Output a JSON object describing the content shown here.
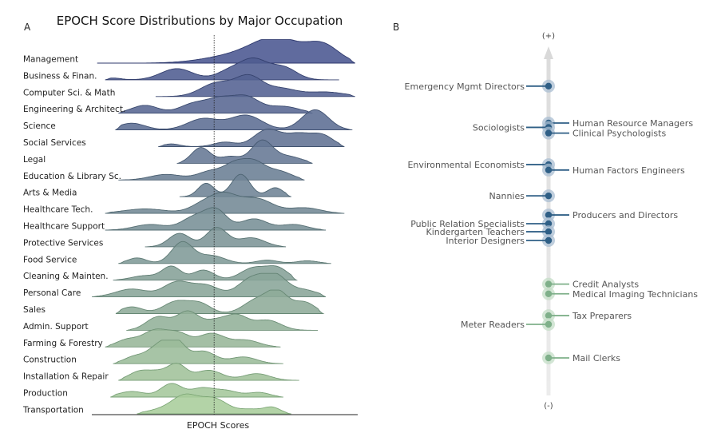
{
  "panel_a": {
    "letter": "A",
    "title": "EPOCH Score Distributions by Major Occupation",
    "xlabel": "EPOCH Scores"
  },
  "panel_b": {
    "letter": "B",
    "top_label": "(+)",
    "bottom_label": "(-)"
  },
  "chart_data": [
    {
      "type": "area",
      "subtype": "ridgeline",
      "title": "EPOCH Score Distributions by Major Occupation",
      "xlabel": "EPOCH Scores",
      "reference_line": "dotted vertical line at overall median",
      "categories": [
        "Management",
        "Business & Finan.",
        "Computer Sci. & Math",
        "Engineering & Architect.",
        "Science",
        "Social Services",
        "Legal",
        "Education & Library Sc.",
        "Arts & Media",
        "Healthcare Tech.",
        "Healthcare Support",
        "Protective Services",
        "Food Service",
        "Cleaning &  Mainten.",
        "Personal Care",
        "Sales",
        "Admin. Support",
        "Farming & Forestry",
        "Construction",
        "Installation & Repair",
        "Production",
        "Transportation"
      ],
      "x_range": [
        0,
        1
      ],
      "median": 0.46,
      "series": [
        {
          "range": [
            0.02,
            0.99
          ],
          "peaks": [
            [
              0.55,
              0.35,
              0.12
            ],
            [
              0.7,
              1.0,
              0.09
            ],
            [
              0.87,
              0.75,
              0.06
            ]
          ]
        },
        {
          "range": [
            0.05,
            0.93
          ],
          "peaks": [
            [
              0.08,
              0.08,
              0.03
            ],
            [
              0.32,
              0.5,
              0.06
            ],
            [
              0.52,
              0.4,
              0.05
            ],
            [
              0.61,
              0.85,
              0.05
            ],
            [
              0.72,
              0.55,
              0.05
            ]
          ]
        },
        {
          "range": [
            0.24,
            0.99
          ],
          "peaks": [
            [
              0.47,
              0.6,
              0.06
            ],
            [
              0.59,
              0.85,
              0.05
            ],
            [
              0.71,
              0.35,
              0.06
            ],
            [
              0.88,
              0.2,
              0.07
            ]
          ]
        },
        {
          "range": [
            0.1,
            0.83
          ],
          "peaks": [
            [
              0.2,
              0.35,
              0.05
            ],
            [
              0.38,
              0.4,
              0.05
            ],
            [
              0.48,
              0.6,
              0.05
            ],
            [
              0.58,
              0.7,
              0.05
            ],
            [
              0.72,
              0.3,
              0.06
            ]
          ]
        },
        {
          "range": [
            0.09,
            0.98
          ],
          "peaks": [
            [
              0.15,
              0.3,
              0.05
            ],
            [
              0.42,
              0.5,
              0.06
            ],
            [
              0.58,
              0.65,
              0.06
            ],
            [
              0.84,
              0.9,
              0.05
            ]
          ]
        },
        {
          "range": [
            0.25,
            0.95
          ],
          "peaks": [
            [
              0.3,
              0.12,
              0.03
            ],
            [
              0.5,
              0.2,
              0.04
            ],
            [
              0.66,
              0.75,
              0.05
            ],
            [
              0.78,
              0.55,
              0.05
            ],
            [
              0.87,
              0.45,
              0.04
            ]
          ]
        },
        {
          "range": [
            0.32,
            0.83
          ],
          "peaks": [
            [
              0.41,
              0.7,
              0.035
            ],
            [
              0.52,
              0.3,
              0.04
            ],
            [
              0.64,
              1.0,
              0.04
            ],
            [
              0.74,
              0.3,
              0.05
            ]
          ]
        },
        {
          "range": [
            0.1,
            0.8
          ],
          "peaks": [
            [
              0.28,
              0.25,
              0.06
            ],
            [
              0.45,
              0.4,
              0.05
            ],
            [
              0.54,
              0.65,
              0.04
            ],
            [
              0.61,
              0.7,
              0.04
            ],
            [
              0.7,
              0.4,
              0.05
            ]
          ]
        },
        {
          "range": [
            0.33,
            0.75
          ],
          "peaks": [
            [
              0.43,
              0.6,
              0.03
            ],
            [
              0.56,
              1.0,
              0.035
            ],
            [
              0.69,
              0.4,
              0.03
            ]
          ]
        },
        {
          "range": [
            0.05,
            0.95
          ],
          "peaks": [
            [
              0.2,
              0.2,
              0.08
            ],
            [
              0.42,
              0.4,
              0.05
            ],
            [
              0.5,
              0.75,
              0.05
            ],
            [
              0.62,
              0.65,
              0.06
            ],
            [
              0.8,
              0.25,
              0.06
            ]
          ]
        },
        {
          "range": [
            0.05,
            0.88
          ],
          "peaks": [
            [
              0.22,
              0.25,
              0.06
            ],
            [
              0.39,
              0.6,
              0.05
            ],
            [
              0.47,
              0.8,
              0.04
            ],
            [
              0.61,
              0.5,
              0.05
            ],
            [
              0.76,
              0.25,
              0.05
            ]
          ]
        },
        {
          "range": [
            0.2,
            0.73
          ],
          "peaks": [
            [
              0.33,
              0.6,
              0.04
            ],
            [
              0.47,
              0.85,
              0.04
            ],
            [
              0.6,
              0.4,
              0.05
            ]
          ]
        },
        {
          "range": [
            0.1,
            0.9
          ],
          "peaks": [
            [
              0.17,
              0.25,
              0.035
            ],
            [
              0.34,
              0.95,
              0.04
            ],
            [
              0.45,
              0.35,
              0.05
            ],
            [
              0.66,
              0.15,
              0.04
            ],
            [
              0.81,
              0.12,
              0.04
            ]
          ]
        },
        {
          "range": [
            0.08,
            0.77
          ],
          "peaks": [
            [
              0.2,
              0.2,
              0.05
            ],
            [
              0.3,
              0.6,
              0.035
            ],
            [
              0.42,
              0.45,
              0.04
            ],
            [
              0.61,
              0.55,
              0.05
            ],
            [
              0.7,
              0.5,
              0.04
            ]
          ]
        },
        {
          "range": [
            0.0,
            0.88
          ],
          "peaks": [
            [
              0.15,
              0.35,
              0.06
            ],
            [
              0.32,
              0.65,
              0.05
            ],
            [
              0.43,
              0.5,
              0.05
            ],
            [
              0.6,
              0.8,
              0.05
            ],
            [
              0.69,
              0.9,
              0.045
            ],
            [
              0.8,
              0.3,
              0.05
            ]
          ]
        },
        {
          "range": [
            0.09,
            0.87
          ],
          "peaks": [
            [
              0.15,
              0.3,
              0.04
            ],
            [
              0.32,
              0.55,
              0.05
            ],
            [
              0.41,
              0.4,
              0.04
            ],
            [
              0.62,
              0.6,
              0.05
            ],
            [
              0.7,
              0.9,
              0.04
            ],
            [
              0.8,
              0.5,
              0.04
            ]
          ]
        },
        {
          "range": [
            0.13,
            0.85
          ],
          "peaks": [
            [
              0.25,
              0.6,
              0.045
            ],
            [
              0.36,
              0.8,
              0.04
            ],
            [
              0.47,
              0.45,
              0.05
            ],
            [
              0.55,
              0.55,
              0.04
            ],
            [
              0.66,
              0.45,
              0.05
            ]
          ]
        },
        {
          "range": [
            0.05,
            0.71
          ],
          "peaks": [
            [
              0.13,
              0.3,
              0.04
            ],
            [
              0.24,
              0.75,
              0.05
            ],
            [
              0.33,
              0.5,
              0.04
            ],
            [
              0.45,
              0.6,
              0.05
            ],
            [
              0.58,
              0.3,
              0.05
            ]
          ]
        },
        {
          "range": [
            0.08,
            0.72
          ],
          "peaks": [
            [
              0.16,
              0.3,
              0.04
            ],
            [
              0.26,
              0.85,
              0.045
            ],
            [
              0.32,
              0.75,
              0.035
            ],
            [
              0.42,
              0.55,
              0.045
            ],
            [
              0.57,
              0.3,
              0.05
            ]
          ]
        },
        {
          "range": [
            0.1,
            0.78
          ],
          "peaks": [
            [
              0.18,
              0.4,
              0.04
            ],
            [
              0.25,
              0.3,
              0.035
            ],
            [
              0.32,
              0.7,
              0.035
            ],
            [
              0.44,
              0.45,
              0.05
            ],
            [
              0.62,
              0.3,
              0.05
            ]
          ]
        },
        {
          "range": [
            0.07,
            0.72
          ],
          "peaks": [
            [
              0.15,
              0.25,
              0.05
            ],
            [
              0.3,
              0.6,
              0.04
            ],
            [
              0.41,
              0.35,
              0.04
            ],
            [
              0.5,
              0.3,
              0.05
            ],
            [
              0.63,
              0.2,
              0.04
            ]
          ]
        },
        {
          "range": [
            0.17,
            0.75
          ],
          "peaks": [
            [
              0.25,
              0.15,
              0.05
            ],
            [
              0.35,
              0.8,
              0.05
            ],
            [
              0.46,
              0.65,
              0.05
            ],
            [
              0.6,
              0.2,
              0.05
            ],
            [
              0.68,
              0.25,
              0.03
            ]
          ]
        }
      ]
    },
    {
      "type": "scatter",
      "subtype": "ranked-strip",
      "top_label": "(+)",
      "bottom_label": "(-)",
      "axis_range": [
        0,
        1
      ],
      "points": [
        {
          "name": "Emergency Mgmt Directors",
          "y": 0.91,
          "side": "left",
          "group": "high"
        },
        {
          "name": "Human Resource Managers",
          "y": 0.8,
          "side": "right",
          "group": "high"
        },
        {
          "name": "Sociologists",
          "y": 0.787,
          "side": "left",
          "group": "high"
        },
        {
          "name": "Clinical Psychologists",
          "y": 0.77,
          "side": "right",
          "group": "high"
        },
        {
          "name": "Environmental Economists",
          "y": 0.676,
          "side": "left",
          "group": "high"
        },
        {
          "name": "Human Factors Engineers",
          "y": 0.66,
          "side": "right",
          "group": "high"
        },
        {
          "name": "Nannies",
          "y": 0.583,
          "side": "left",
          "group": "high"
        },
        {
          "name": "Producers and Directors",
          "y": 0.526,
          "side": "right",
          "group": "high"
        },
        {
          "name": "Public Relation Specialists",
          "y": 0.5,
          "side": "left",
          "group": "high"
        },
        {
          "name": "Kindergarten Teachers",
          "y": 0.476,
          "side": "left",
          "group": "high"
        },
        {
          "name": "Interior Designers",
          "y": 0.45,
          "side": "left",
          "group": "high"
        },
        {
          "name": "Credit Analysts",
          "y": 0.32,
          "side": "right",
          "group": "low"
        },
        {
          "name": "Medical Imaging Technicians",
          "y": 0.291,
          "side": "right",
          "group": "low"
        },
        {
          "name": "Tax Preparers",
          "y": 0.226,
          "side": "right",
          "group": "low"
        },
        {
          "name": "Meter Readers",
          "y": 0.2,
          "side": "left",
          "group": "low"
        },
        {
          "name": "Mail Clerks",
          "y": 0.1,
          "side": "right",
          "group": "low"
        }
      ],
      "colors": {
        "high": "#2f5f86",
        "low": "#7fb08a"
      }
    }
  ]
}
